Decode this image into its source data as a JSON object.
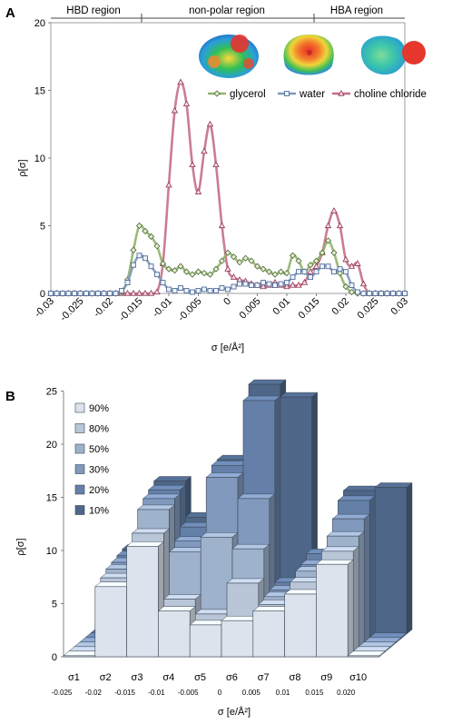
{
  "panel_a": {
    "label": "A",
    "regions": [
      "HBD region",
      "non-polar region",
      "HBA region"
    ],
    "ylabel": "ρ[σ]",
    "xlabel": "σ [e/Å²]",
    "legend": [
      "glycerol",
      "water",
      "choline chloride"
    ]
  },
  "panel_b": {
    "label": "B",
    "ylabel": "ρ[σ]",
    "xlabel": "σ [e/Å²]",
    "legend": [
      "90%",
      "80%",
      "50%",
      "30%",
      "20%",
      "10%"
    ]
  },
  "chart_data": [
    {
      "type": "line",
      "xlim": [
        -0.03,
        0.03
      ],
      "ylim": [
        0,
        20
      ],
      "xticks": [
        "-0.03",
        "-0.025",
        "-0.02",
        "-0.015",
        "-0.01",
        "-0.005",
        "0",
        "0.005",
        "0.01",
        "0.015",
        "0.02",
        "0.025",
        "0.03"
      ],
      "yticks": [
        "0",
        "5",
        "10",
        "15",
        "20"
      ],
      "series": [
        {
          "name": "glycerol",
          "color": "#8fb36a",
          "marker": "diamond",
          "x": [
            -0.03,
            -0.029,
            -0.028,
            -0.027,
            -0.026,
            -0.025,
            -0.024,
            -0.023,
            -0.022,
            -0.021,
            -0.02,
            -0.019,
            -0.018,
            -0.017,
            -0.016,
            -0.015,
            -0.014,
            -0.013,
            -0.012,
            -0.011,
            -0.01,
            -0.009,
            -0.008,
            -0.007,
            -0.006,
            -0.005,
            -0.004,
            -0.003,
            -0.002,
            -0.001,
            0,
            0.001,
            0.002,
            0.003,
            0.004,
            0.005,
            0.006,
            0.007,
            0.008,
            0.009,
            0.01,
            0.011,
            0.012,
            0.013,
            0.014,
            0.015,
            0.016,
            0.017,
            0.018,
            0.019,
            0.02,
            0.021,
            0.022,
            0.023,
            0.024,
            0.025,
            0.026,
            0.027,
            0.028,
            0.029,
            0.03
          ],
          "y": [
            0,
            0,
            0,
            0,
            0,
            0,
            0,
            0,
            0,
            0,
            0,
            0,
            0.1,
            1.0,
            3.2,
            5.0,
            4.6,
            4.2,
            3.5,
            2.2,
            1.8,
            1.7,
            2.0,
            1.6,
            1.4,
            1.6,
            1.5,
            1.4,
            1.8,
            2.4,
            3.0,
            2.7,
            2.3,
            2.6,
            2.4,
            2.0,
            1.8,
            1.6,
            1.4,
            1.6,
            1.5,
            2.8,
            2.4,
            1.6,
            2.1,
            2.4,
            3.0,
            3.9,
            3.0,
            1.5,
            0.5,
            0.1,
            0,
            0,
            0,
            0,
            0,
            0,
            0,
            0,
            0
          ]
        },
        {
          "name": "water",
          "color": "#7f98be",
          "marker": "square",
          "x": [
            -0.03,
            -0.029,
            -0.028,
            -0.027,
            -0.026,
            -0.025,
            -0.024,
            -0.023,
            -0.022,
            -0.021,
            -0.02,
            -0.019,
            -0.018,
            -0.017,
            -0.016,
            -0.015,
            -0.014,
            -0.013,
            -0.012,
            -0.011,
            -0.01,
            -0.009,
            -0.008,
            -0.007,
            -0.006,
            -0.005,
            -0.004,
            -0.003,
            -0.002,
            -0.001,
            0,
            0.001,
            0.002,
            0.003,
            0.004,
            0.005,
            0.006,
            0.007,
            0.008,
            0.009,
            0.01,
            0.011,
            0.012,
            0.013,
            0.014,
            0.015,
            0.016,
            0.017,
            0.018,
            0.019,
            0.02,
            0.021,
            0.022,
            0.023,
            0.024,
            0.025,
            0.026,
            0.027,
            0.028,
            0.029,
            0.03
          ],
          "y": [
            0,
            0,
            0,
            0,
            0,
            0,
            0,
            0,
            0,
            0,
            0,
            0,
            0.2,
            0.8,
            2.1,
            2.8,
            2.6,
            2.0,
            1.4,
            0.8,
            0.3,
            0.2,
            0.4,
            0.2,
            0.1,
            0.2,
            0.3,
            0.2,
            0.2,
            0.4,
            0.3,
            0.5,
            0.7,
            0.7,
            0.6,
            0.6,
            0.8,
            0.7,
            0.6,
            0.7,
            0.8,
            1.2,
            1.6,
            1.6,
            1.2,
            1.6,
            2.0,
            2.0,
            1.6,
            1.8,
            1.6,
            0.6,
            0.1,
            0,
            0,
            0,
            0,
            0,
            0,
            0,
            0
          ]
        },
        {
          "name": "choline chloride",
          "color": "#c46f88",
          "marker": "triangle",
          "x": [
            -0.03,
            -0.029,
            -0.028,
            -0.027,
            -0.026,
            -0.025,
            -0.024,
            -0.023,
            -0.022,
            -0.021,
            -0.02,
            -0.019,
            -0.018,
            -0.017,
            -0.016,
            -0.015,
            -0.014,
            -0.013,
            -0.012,
            -0.011,
            -0.01,
            -0.009,
            -0.008,
            -0.007,
            -0.006,
            -0.005,
            -0.004,
            -0.003,
            -0.002,
            -0.001,
            0,
            0.001,
            0.002,
            0.003,
            0.004,
            0.005,
            0.006,
            0.007,
            0.008,
            0.009,
            0.01,
            0.011,
            0.012,
            0.013,
            0.014,
            0.015,
            0.016,
            0.017,
            0.018,
            0.019,
            0.02,
            0.021,
            0.022,
            0.023,
            0.024,
            0.025,
            0.026,
            0.027,
            0.028,
            0.029,
            0.03
          ],
          "y": [
            0,
            0,
            0,
            0,
            0,
            0,
            0,
            0,
            0,
            0,
            0,
            0,
            0,
            0,
            0,
            0,
            0,
            0,
            0.1,
            2.2,
            8.0,
            13.5,
            15.6,
            14.0,
            9.5,
            7.5,
            10.5,
            12.5,
            9.5,
            5.0,
            1.8,
            1.2,
            1.0,
            0.9,
            0.7,
            0.6,
            0.5,
            0.6,
            0.8,
            0.6,
            0.5,
            0.6,
            0.6,
            0.8,
            1.6,
            2.0,
            3.0,
            5.0,
            6.1,
            5.0,
            2.5,
            2.0,
            2.2,
            0.7,
            0,
            0,
            0,
            0,
            0,
            0,
            0
          ]
        }
      ]
    },
    {
      "type": "bar",
      "categories": [
        "σ1",
        "σ2",
        "σ3",
        "σ4",
        "σ5",
        "σ6",
        "σ7",
        "σ8",
        "σ9",
        "σ10"
      ],
      "category_values": [
        "-0.025",
        "-0.02",
        "-0.015",
        "-0.01",
        "-0.005",
        "0",
        "0.005",
        "0.01",
        "0.015",
        "0.020"
      ],
      "ylim": [
        0,
        25
      ],
      "yticks": [
        "0",
        "5",
        "10",
        "15",
        "20",
        "25"
      ],
      "series": [
        {
          "name": "90%",
          "color": "#dde3ec",
          "values": [
            0.1,
            6.6,
            10.4,
            4.3,
            3.0,
            3.4,
            4.3,
            5.9,
            8.7,
            0.1
          ]
        },
        {
          "name": "80%",
          "color": "#b9c6d8",
          "values": [
            0.1,
            7.0,
            11.2,
            5.0,
            3.6,
            6.5,
            4.5,
            6.6,
            9.5,
            0.1
          ]
        },
        {
          "name": "50%",
          "color": "#9fb2cc",
          "values": [
            0.1,
            7.4,
            13.0,
            9.0,
            10.4,
            9.3,
            4.8,
            7.2,
            10.5,
            0.1
          ]
        },
        {
          "name": "30%",
          "color": "#8199bd",
          "values": [
            0.1,
            7.6,
            13.6,
            9.6,
            15.6,
            13.6,
            5.0,
            7.4,
            11.7,
            0.1
          ]
        },
        {
          "name": "20%",
          "color": "#6480a8",
          "values": [
            0.1,
            7.8,
            14.0,
            10.5,
            16.3,
            22.4,
            5.3,
            8.0,
            13.0,
            0.1
          ]
        },
        {
          "name": "10%",
          "color": "#4e6688",
          "values": [
            0.1,
            8.0,
            14.4,
            11.0,
            16.4,
            23.5,
            22.3,
            5.8,
            13.5,
            13.8
          ]
        }
      ]
    }
  ]
}
